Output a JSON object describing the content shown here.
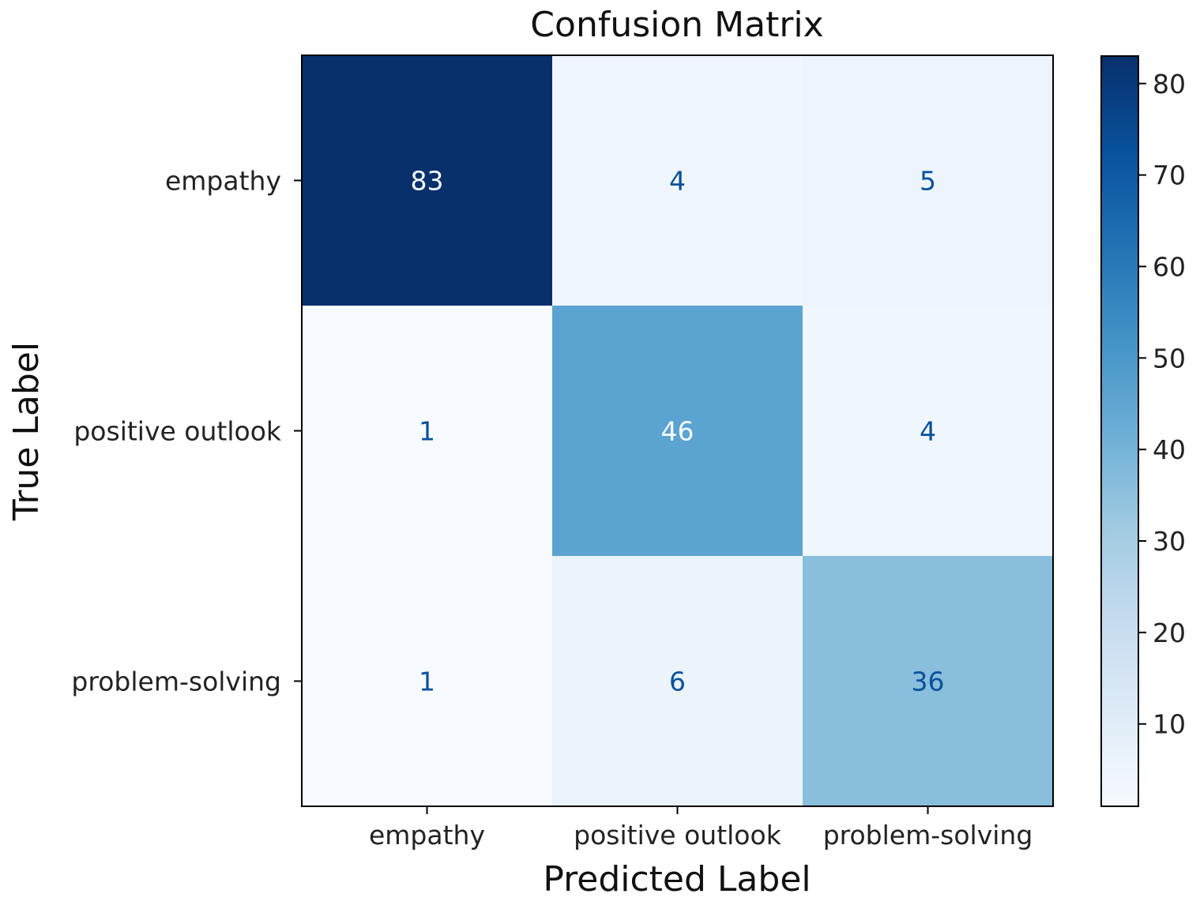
{
  "chart_data": {
    "type": "heatmap",
    "title": "Confusion Matrix",
    "xlabel": "Predicted Label",
    "ylabel": "True Label",
    "x_categories": [
      "empathy",
      "positive outlook",
      "problem-solving"
    ],
    "y_categories": [
      "empathy",
      "positive outlook",
      "problem-solving"
    ],
    "values": [
      [
        83,
        4,
        5
      ],
      [
        1,
        46,
        4
      ],
      [
        1,
        6,
        36
      ]
    ],
    "colormap": "Blues",
    "colorbar": {
      "min": 1,
      "max": 83,
      "ticks": [
        10,
        20,
        30,
        40,
        50,
        60,
        70,
        80
      ]
    },
    "text_colors": {
      "on_dark": "#f7fbff",
      "on_light": "#08519c"
    }
  }
}
